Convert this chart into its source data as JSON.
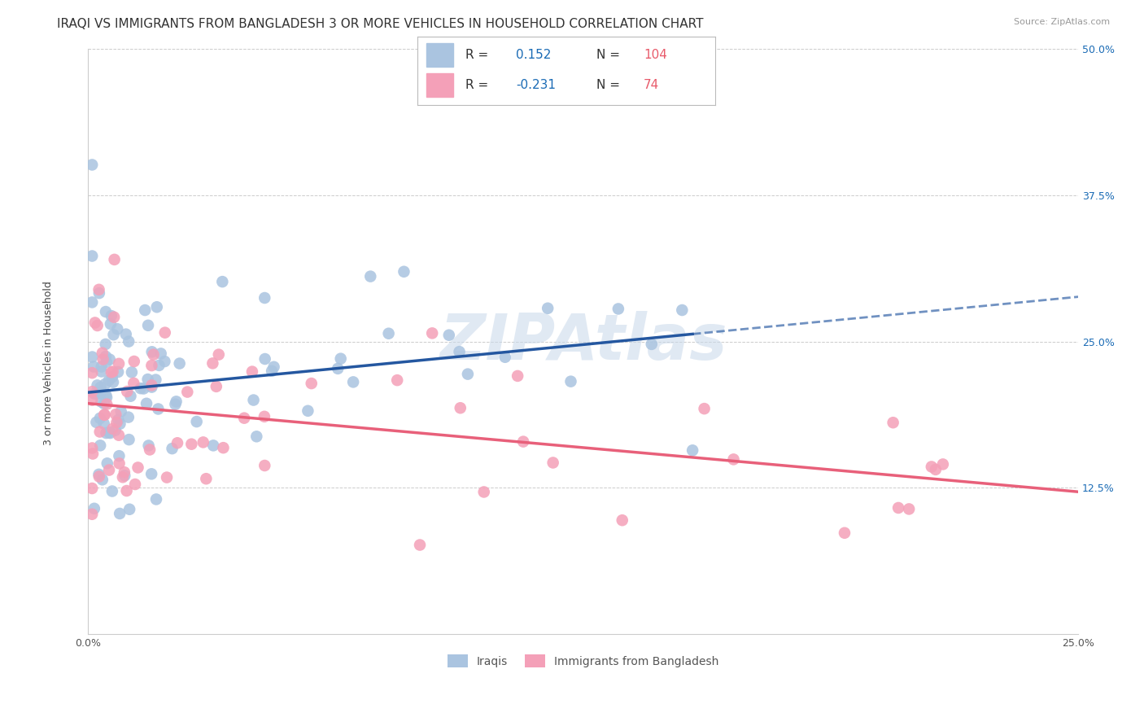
{
  "title": "IRAQI VS IMMIGRANTS FROM BANGLADESH 3 OR MORE VEHICLES IN HOUSEHOLD CORRELATION CHART",
  "source": "Source: ZipAtlas.com",
  "ylabel": "3 or more Vehicles in Household",
  "xlim": [
    0.0,
    0.25
  ],
  "ylim": [
    0.0,
    0.5
  ],
  "xtick_labels": [
    "0.0%",
    "",
    "25.0%"
  ],
  "ytick_labels": [
    "",
    "12.5%",
    "25.0%",
    "37.5%",
    "50.0%"
  ],
  "series1_label": "Iraqis",
  "series1_color": "#aac4e0",
  "series1_R": 0.152,
  "series1_N": 104,
  "series1_line_color": "#2457a0",
  "series2_label": "Immigrants from Bangladesh",
  "series2_color": "#f4a0b8",
  "series2_R": -0.231,
  "series2_N": 74,
  "series2_line_color": "#e8607a",
  "legend_text_color": "#333333",
  "legend_val_color": "#1a6bb5",
  "legend_N_color": "#e85a6a",
  "watermark": "ZIPAtlas",
  "watermark_color": "#c8d8ea",
  "background_color": "#ffffff",
  "grid_color": "#cccccc",
  "title_fontsize": 11,
  "axis_label_fontsize": 9,
  "tick_fontsize": 9,
  "ytick_color": "#1a6bb5",
  "xtick_color": "#555555"
}
